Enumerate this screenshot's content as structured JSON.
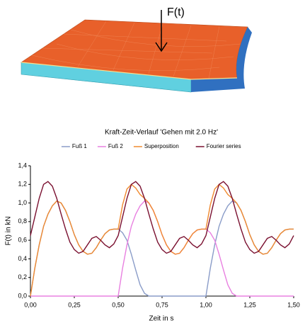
{
  "figure_label": "F(t)",
  "chart_data": {
    "type": "line",
    "title": "Kraft-Zeit-Verlauf 'Gehen mit 2.0 Hz'",
    "x_label": "Zeit in s",
    "y_label": "F(t) in kN",
    "x": [
      0,
      0.025,
      0.05,
      0.075,
      0.1,
      0.125,
      0.15,
      0.175,
      0.2,
      0.225,
      0.25,
      0.275,
      0.3,
      0.325,
      0.35,
      0.375,
      0.4,
      0.425,
      0.45,
      0.475,
      0.5,
      0.525,
      0.55,
      0.575,
      0.6,
      0.625,
      0.65,
      0.675,
      0.7,
      0.725,
      0.75,
      0.775,
      0.8,
      0.825,
      0.85,
      0.875,
      0.9,
      0.925,
      0.95,
      0.975,
      1,
      1.025,
      1.05,
      1.075,
      1.1,
      1.125,
      1.15,
      1.175,
      1.2,
      1.225,
      1.25,
      1.275,
      1.3,
      1.325,
      1.35,
      1.375,
      1.4,
      1.425,
      1.45,
      1.475,
      1.5
    ],
    "series": [
      {
        "name": "Fuß 1",
        "color": "#8a9cc8",
        "values": [
          0,
          0.3,
          0.55,
          0.75,
          0.88,
          0.97,
          1.02,
          1.0,
          0.92,
          0.8,
          0.66,
          0.55,
          0.48,
          0.45,
          0.46,
          0.52,
          0.6,
          0.67,
          0.71,
          0.72,
          0.72,
          0.68,
          0.6,
          0.45,
          0.28,
          0.12,
          0.03,
          0,
          0,
          0,
          0,
          0,
          0,
          0,
          0,
          0,
          0,
          0,
          0,
          0,
          0,
          0.3,
          0.55,
          0.75,
          0.88,
          0.97,
          1.02,
          1.0,
          0.92,
          0.8,
          0.66,
          0.55,
          0.48,
          0.45,
          0.46,
          0.52,
          0.6,
          0.67,
          0.71,
          0.72,
          0.72
        ]
      },
      {
        "name": "Fuß 2",
        "color": "#e880e0",
        "values": [
          0,
          0,
          0,
          0,
          0,
          0,
          0,
          0,
          0,
          0,
          0,
          0,
          0,
          0,
          0,
          0,
          0,
          0,
          0,
          0,
          0,
          0.3,
          0.55,
          0.75,
          0.88,
          0.97,
          1.02,
          1.0,
          0.92,
          0.8,
          0.66,
          0.55,
          0.48,
          0.45,
          0.46,
          0.52,
          0.6,
          0.67,
          0.71,
          0.72,
          0.72,
          0.68,
          0.6,
          0.45,
          0.28,
          0.12,
          0.03,
          0,
          0,
          0,
          0,
          0,
          0,
          0,
          0,
          0,
          0,
          0,
          0,
          0,
          0
        ]
      },
      {
        "name": "Superposition",
        "color": "#f08a30",
        "values": [
          0,
          0.3,
          0.55,
          0.75,
          0.88,
          0.97,
          1.02,
          1.0,
          0.92,
          0.8,
          0.66,
          0.55,
          0.48,
          0.45,
          0.46,
          0.52,
          0.6,
          0.67,
          0.71,
          0.72,
          0.72,
          0.98,
          1.15,
          1.2,
          1.16,
          1.09,
          1.05,
          1.0,
          0.92,
          0.8,
          0.66,
          0.55,
          0.48,
          0.45,
          0.46,
          0.52,
          0.6,
          0.67,
          0.71,
          0.72,
          0.72,
          0.98,
          1.15,
          1.2,
          1.16,
          1.09,
          1.05,
          1.0,
          0.92,
          0.8,
          0.66,
          0.55,
          0.48,
          0.45,
          0.46,
          0.52,
          0.6,
          0.67,
          0.71,
          0.72,
          0.72
        ]
      },
      {
        "name": "Fourier series",
        "color": "#7a1030",
        "values": [
          0.65,
          0.85,
          1.05,
          1.2,
          1.23,
          1.18,
          1.05,
          0.88,
          0.72,
          0.58,
          0.5,
          0.46,
          0.48,
          0.55,
          0.62,
          0.64,
          0.6,
          0.55,
          0.52,
          0.56,
          0.65,
          0.85,
          1.05,
          1.2,
          1.23,
          1.18,
          1.05,
          0.88,
          0.72,
          0.58,
          0.5,
          0.46,
          0.48,
          0.55,
          0.62,
          0.64,
          0.6,
          0.55,
          0.52,
          0.56,
          0.65,
          0.85,
          1.05,
          1.2,
          1.23,
          1.18,
          1.05,
          0.88,
          0.72,
          0.58,
          0.5,
          0.46,
          0.48,
          0.55,
          0.62,
          0.64,
          0.6,
          0.55,
          0.52,
          0.56,
          0.65
        ]
      }
    ],
    "xlim": [
      0,
      1.5
    ],
    "xticks": [
      {
        "value": 0,
        "label": "0,00"
      },
      {
        "value": 0.25,
        "label": "0,25"
      },
      {
        "value": 0.5,
        "label": "0,50"
      },
      {
        "value": 0.75,
        "label": "0,75"
      },
      {
        "value": 1,
        "label": "1,00"
      },
      {
        "value": 1.25,
        "label": "1,25"
      },
      {
        "value": 1.5,
        "label": "1,50"
      }
    ],
    "ylim": [
      0,
      1.4
    ],
    "yticks": [
      {
        "value": 0,
        "label": "0,0"
      },
      {
        "value": 0.2,
        "label": "0,2"
      },
      {
        "value": 0.4,
        "label": "0,4"
      },
      {
        "value": 0.6,
        "label": "0,6"
      },
      {
        "value": 0.8,
        "label": "0,8"
      },
      {
        "value": 1,
        "label": "1,0"
      },
      {
        "value": 1.2,
        "label": "1,2"
      },
      {
        "value": 1.4,
        "label": "1,4"
      }
    ],
    "legend": "top"
  }
}
